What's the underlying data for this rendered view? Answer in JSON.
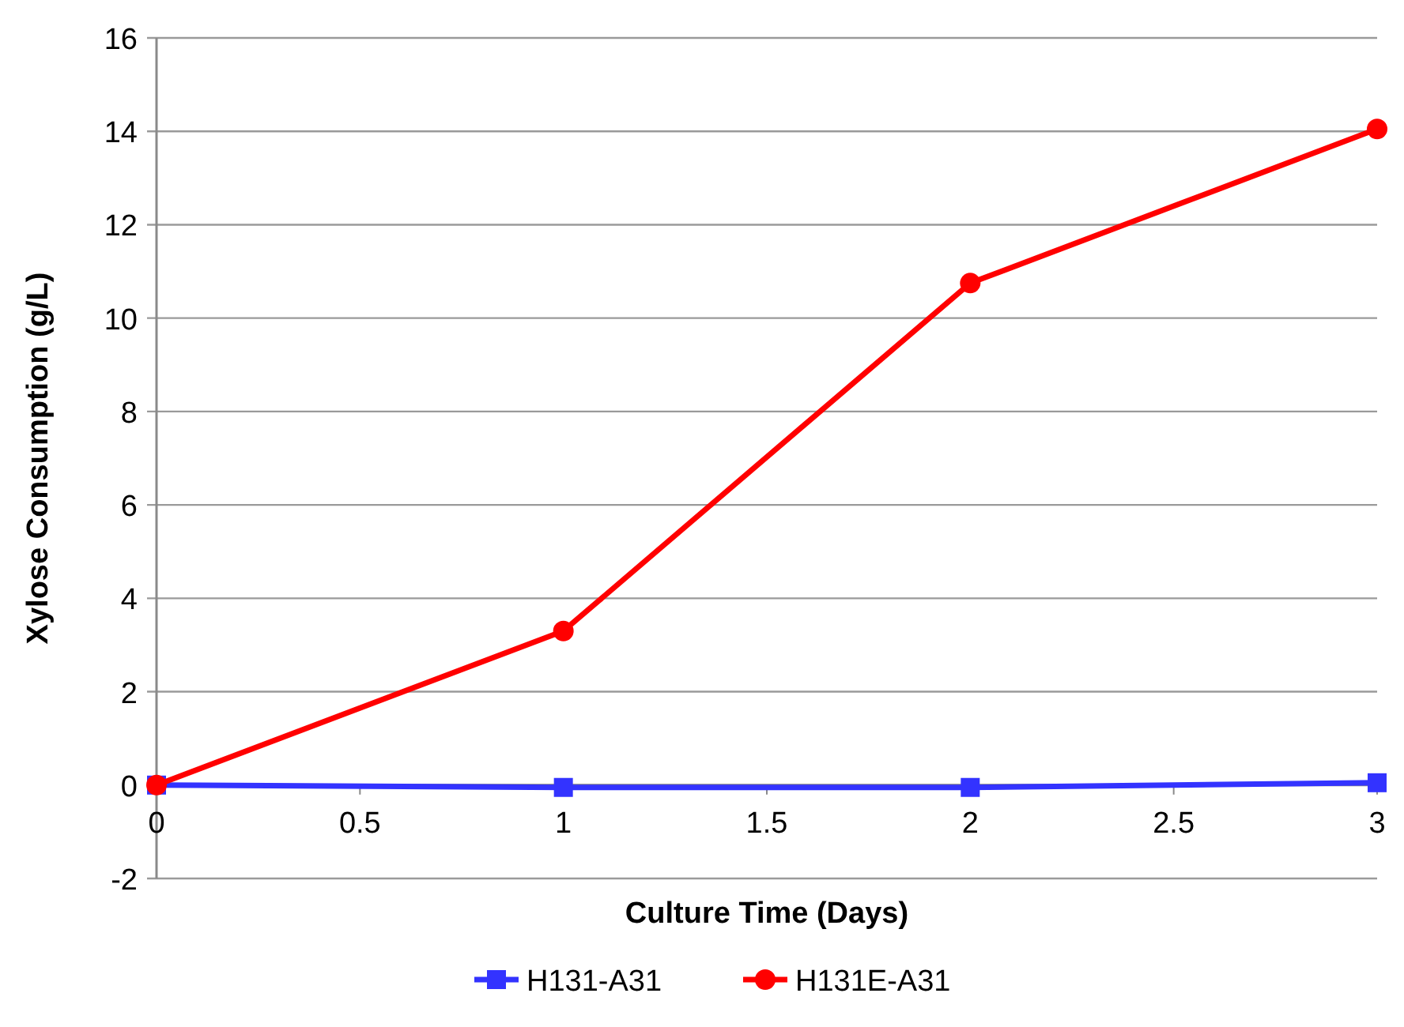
{
  "chart_data": {
    "type": "line",
    "xlabel": "Culture Time (Days)",
    "ylabel": "Xylose Consumption (g/L)",
    "x": [
      0,
      1,
      2,
      3
    ],
    "series": [
      {
        "name": "H131-A31",
        "color": "#3333ff",
        "marker": "square",
        "values": [
          0,
          -0.05,
          -0.05,
          0.05
        ]
      },
      {
        "name": "H131E-A31",
        "color": "#ff0000",
        "marker": "circle",
        "values": [
          0,
          3.3,
          10.75,
          14.05
        ]
      }
    ],
    "xlim": [
      0,
      3
    ],
    "xticks": [
      0,
      0.5,
      1,
      1.5,
      2,
      2.5,
      3
    ],
    "ylim": [
      -2,
      16
    ],
    "yticks": [
      -2,
      0,
      2,
      4,
      6,
      8,
      10,
      12,
      14,
      16
    ],
    "grid": "y",
    "legend": "bottom",
    "line_style": "solid"
  }
}
